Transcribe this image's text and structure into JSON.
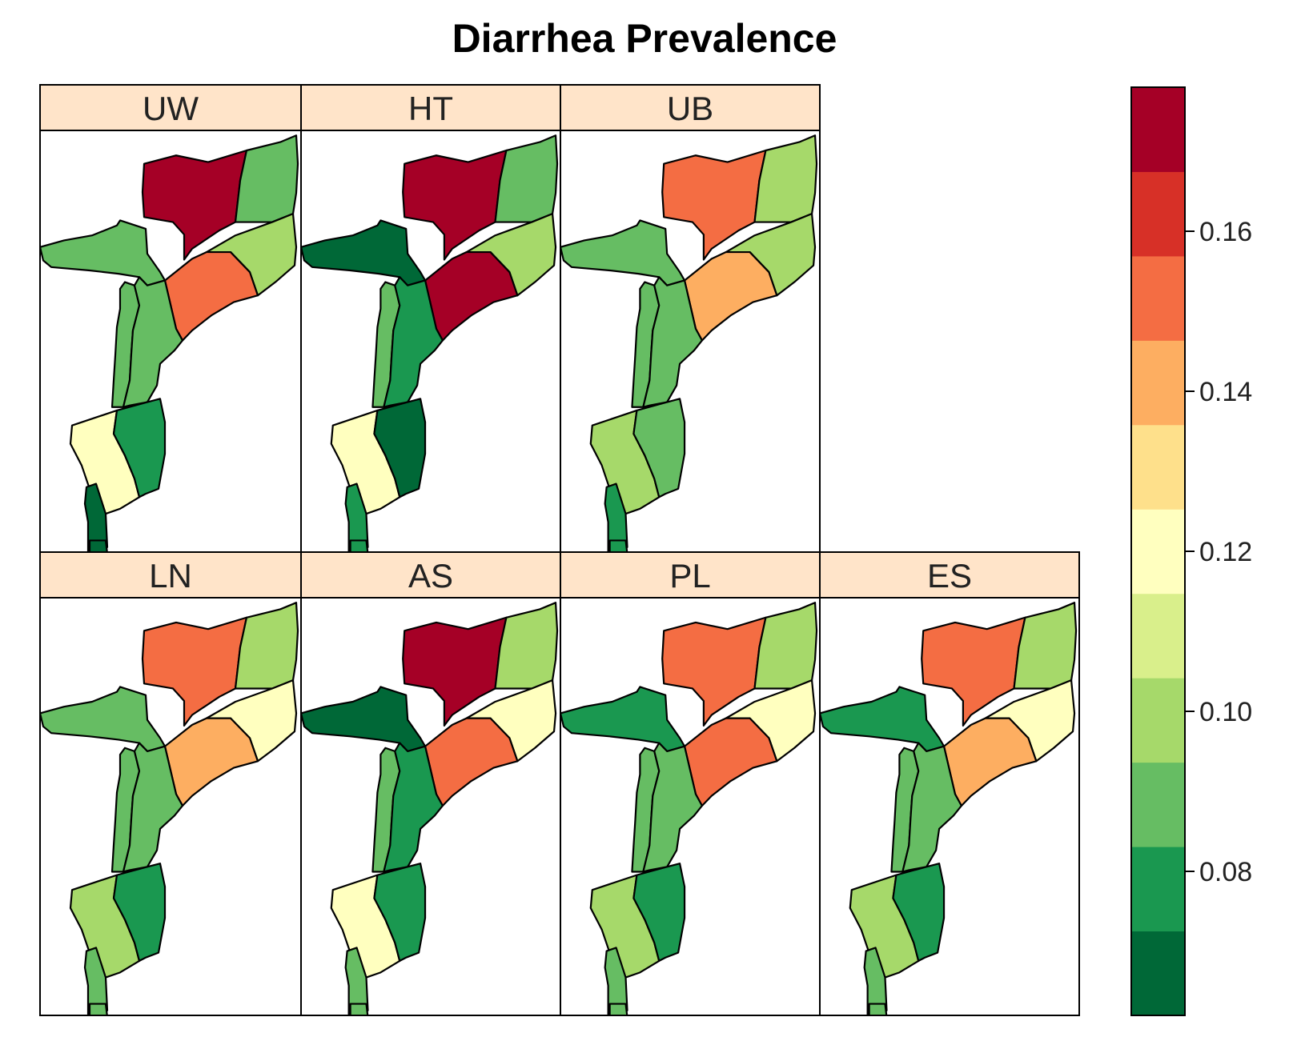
{
  "title": "Diarrhea Prevalence",
  "legend": {
    "colors": [
      "#006837",
      "#1a9850",
      "#66bd63",
      "#a6d96a",
      "#d9ef8b",
      "#ffffbf",
      "#fee08b",
      "#fdae61",
      "#f46d43",
      "#d73027",
      "#a50026"
    ],
    "range": [
      0.062,
      0.178
    ],
    "ticks": [
      "0.08",
      "0.10",
      "0.12",
      "0.14",
      "0.16"
    ]
  },
  "regions": [
    "Niassa",
    "Cabo Delgado",
    "Tete",
    "Nampula",
    "Zambezia",
    "Manica",
    "Sofala",
    "Gaza",
    "Inhambane",
    "Maputo Province",
    "Maputo City"
  ],
  "panels": [
    {
      "label": "UW",
      "colors": {
        "Niassa": "#a50026",
        "Cabo Delgado": "#66bd63",
        "Tete": "#66bd63",
        "Nampula": "#a6d96a",
        "Zambezia": "#f46d43",
        "Manica": "#66bd63",
        "Sofala": "#66bd63",
        "Gaza": "#ffffbf",
        "Inhambane": "#1a9850",
        "Maputo Province": "#006837",
        "Maputo City": "#006837"
      }
    },
    {
      "label": "HT",
      "colors": {
        "Niassa": "#a50026",
        "Cabo Delgado": "#66bd63",
        "Tete": "#006837",
        "Nampula": "#a6d96a",
        "Zambezia": "#a50026",
        "Manica": "#66bd63",
        "Sofala": "#1a9850",
        "Gaza": "#ffffbf",
        "Inhambane": "#006837",
        "Maputo Province": "#1a9850",
        "Maputo City": "#1a9850"
      }
    },
    {
      "label": "UB",
      "colors": {
        "Niassa": "#f46d43",
        "Cabo Delgado": "#a6d96a",
        "Tete": "#66bd63",
        "Nampula": "#a6d96a",
        "Zambezia": "#fdae61",
        "Manica": "#66bd63",
        "Sofala": "#66bd63",
        "Gaza": "#a6d96a",
        "Inhambane": "#66bd63",
        "Maputo Province": "#1a9850",
        "Maputo City": "#1a9850"
      }
    },
    {
      "label": "LN",
      "colors": {
        "Niassa": "#f46d43",
        "Cabo Delgado": "#a6d96a",
        "Tete": "#66bd63",
        "Nampula": "#ffffbf",
        "Zambezia": "#fdae61",
        "Manica": "#66bd63",
        "Sofala": "#66bd63",
        "Gaza": "#a6d96a",
        "Inhambane": "#1a9850",
        "Maputo Province": "#66bd63",
        "Maputo City": "#66bd63"
      }
    },
    {
      "label": "AS",
      "colors": {
        "Niassa": "#a50026",
        "Cabo Delgado": "#a6d96a",
        "Tete": "#006837",
        "Nampula": "#ffffbf",
        "Zambezia": "#f46d43",
        "Manica": "#66bd63",
        "Sofala": "#1a9850",
        "Gaza": "#ffffbf",
        "Inhambane": "#1a9850",
        "Maputo Province": "#66bd63",
        "Maputo City": "#66bd63"
      }
    },
    {
      "label": "PL",
      "colors": {
        "Niassa": "#f46d43",
        "Cabo Delgado": "#a6d96a",
        "Tete": "#1a9850",
        "Nampula": "#ffffbf",
        "Zambezia": "#f46d43",
        "Manica": "#66bd63",
        "Sofala": "#66bd63",
        "Gaza": "#a6d96a",
        "Inhambane": "#1a9850",
        "Maputo Province": "#66bd63",
        "Maputo City": "#66bd63"
      }
    },
    {
      "label": "ES",
      "colors": {
        "Niassa": "#f46d43",
        "Cabo Delgado": "#a6d96a",
        "Tete": "#1a9850",
        "Nampula": "#ffffbf",
        "Zambezia": "#fdae61",
        "Manica": "#66bd63",
        "Sofala": "#66bd63",
        "Gaza": "#a6d96a",
        "Inhambane": "#1a9850",
        "Maputo Province": "#66bd63",
        "Maputo City": "#66bd63"
      }
    }
  ]
}
